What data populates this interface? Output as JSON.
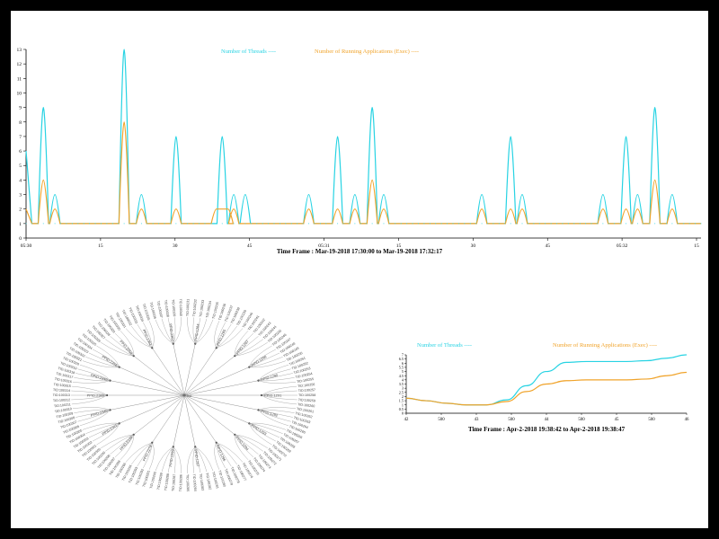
{
  "colors": {
    "threads": "#27d3e3",
    "apps": "#f0a32a",
    "axis": "#000000",
    "tree": "#444444"
  },
  "chart_data": [
    {
      "type": "line",
      "legend": [
        "Number of Threads ----",
        "Number of Running Applications (Exec) ----"
      ],
      "x": [
        0,
        3,
        5,
        17,
        20,
        26,
        34,
        36,
        38,
        49,
        54,
        57,
        60,
        62,
        79,
        84,
        86,
        100,
        104,
        106,
        109,
        112,
        115
      ],
      "series": [
        {
          "name": "Number of Threads",
          "values": [
            6,
            9,
            3,
            13,
            3,
            7,
            7,
            3,
            3,
            3,
            7,
            3,
            9,
            3,
            3,
            7,
            3,
            3,
            7,
            3,
            9,
            3,
            1
          ]
        },
        {
          "name": "Number of Running Applications (Exec)",
          "values": [
            2,
            4,
            2,
            8,
            2,
            2,
            2,
            2,
            1,
            2,
            2,
            2,
            4,
            2,
            2,
            2,
            2,
            2,
            2,
            2,
            4,
            2,
            1
          ]
        }
      ],
      "baseline": 1,
      "ylim": [
        0,
        13
      ],
      "yticks": [
        "0",
        "1",
        "2",
        "3",
        "4",
        "5",
        "6",
        "7",
        "8",
        "9",
        "10",
        "11",
        "12",
        "13"
      ],
      "xticks": [
        "05:30",
        "15",
        "30",
        "45",
        "05:31",
        "15",
        "30",
        "45",
        "05:32",
        "15"
      ],
      "xlabel": "Time Frame : Mar-19-2018 17:30:00 to Mar-19-2018 17:32:17"
    },
    {
      "type": "line",
      "legend": [
        "Number of Threads ----",
        "Number of Running Applications (Exec) ----"
      ],
      "series": [
        {
          "name": "Number of Threads",
          "values": [
            1.8,
            1.5,
            1.2,
            1.0,
            1.0,
            1.6,
            3.3,
            5.0,
            6.1,
            6.2,
            6.2,
            6.2,
            6.3,
            6.6,
            7.0
          ]
        },
        {
          "name": "Number of Running Applications (Exec)",
          "values": [
            1.8,
            1.5,
            1.2,
            1.0,
            1.0,
            1.4,
            2.6,
            3.5,
            3.9,
            4.0,
            4.0,
            4.0,
            4.1,
            4.5,
            4.9
          ]
        }
      ],
      "ylim": [
        0,
        7
      ],
      "yticks": [
        "0",
        "0.5",
        "1",
        "1.5",
        "2",
        "2.5",
        "3",
        "3.5",
        "4",
        "4.5",
        "5",
        "5.5",
        "6",
        "6.5",
        "7"
      ],
      "xticks": [
        "42",
        "500",
        "43",
        "500",
        "44",
        "500",
        "45",
        "500",
        "46"
      ],
      "xlabel": "Time Frame : Apr-2-2018 19:38:42 to Apr-2-2018 19:38:47"
    }
  ],
  "tree": {
    "center": "Init",
    "groups": [
      "PPID:1284",
      "PPID:1285",
      "PPID:1287",
      "PPID:1288",
      "PPID:1290",
      "PPID:1291",
      "PPID:1292",
      "PPID:1293",
      "PPID:1294",
      "PPID:1296",
      "PPID:1297",
      "PPID:1299",
      "PPID:2278",
      "PPID:2339",
      "PPID:2341",
      "PPID:2345",
      "PPID:2346",
      "PPID:2349",
      "PPID:2356",
      "PPID:2359",
      "PPID:2361",
      "PPID:2362"
    ],
    "leaves": [
      "TID:100231",
      "TID:100232",
      "TID:100233",
      "TID:100234",
      "TID:100235",
      "TID:100236",
      "TID:100237",
      "TID:100238",
      "TID:100239",
      "TID:100240",
      "TID:100241",
      "TID:100242",
      "TID:100243",
      "TID:100244",
      "TID:100245",
      "TID:100246",
      "TID:100247",
      "TID:100248",
      "TID:100249",
      "TID:100250",
      "TID:100251",
      "TID:100252",
      "TID:100253",
      "TID:100254",
      "TID:100255",
      "TID:100256",
      "TID:100257",
      "TID:100258",
      "TID:100259",
      "TID:100260",
      "TID:100261",
      "TID:100262",
      "TID:100263",
      "TID:100264",
      "TID:100265",
      "TID:100266",
      "TID:100267",
      "TID:100268",
      "TID:100269",
      "TID:100270",
      "TID:100271",
      "TID:100272",
      "TID:100273",
      "TID:100274",
      "TID:100275",
      "TID:100276",
      "TID:100277",
      "TID:100278",
      "TID:100279",
      "TID:100280",
      "TID:100281",
      "TID:100282",
      "TID:100283",
      "TID:100284",
      "TID:100285",
      "TID:100286",
      "TID:100287",
      "TID:100288",
      "TID:100289",
      "TID:100290",
      "TID:100291",
      "TID:100292",
      "TID:100293",
      "TID:100294",
      "TID:100295",
      "TID:100296",
      "TID:100297",
      "TID:100298",
      "TID:100299",
      "TID:100300",
      "TID:100301",
      "TID:100302",
      "TID:100303",
      "TID:100304",
      "TID:100305",
      "TID:100306",
      "TID:100307",
      "TID:100308",
      "TID:100309",
      "TID:100310",
      "TID:100311",
      "TID:100312",
      "TID:100313",
      "TID:100314",
      "TID:100315",
      "TID:100316",
      "TID:100317",
      "TID:100318",
      "TID:100319",
      "TID:100320",
      "TID:100321",
      "TID:100322",
      "TID:100323",
      "TID:100324",
      "TID:100325",
      "TID:100326",
      "TID:100327",
      "TID:100328",
      "TID:100329",
      "TID:100330",
      "TID:100331",
      "TID:100332",
      "TID:100333",
      "TID:100334",
      "TID:100335",
      "TID:100336",
      "TID:100337",
      "TID:100338",
      "TID:100339",
      "TID:100340"
    ]
  }
}
